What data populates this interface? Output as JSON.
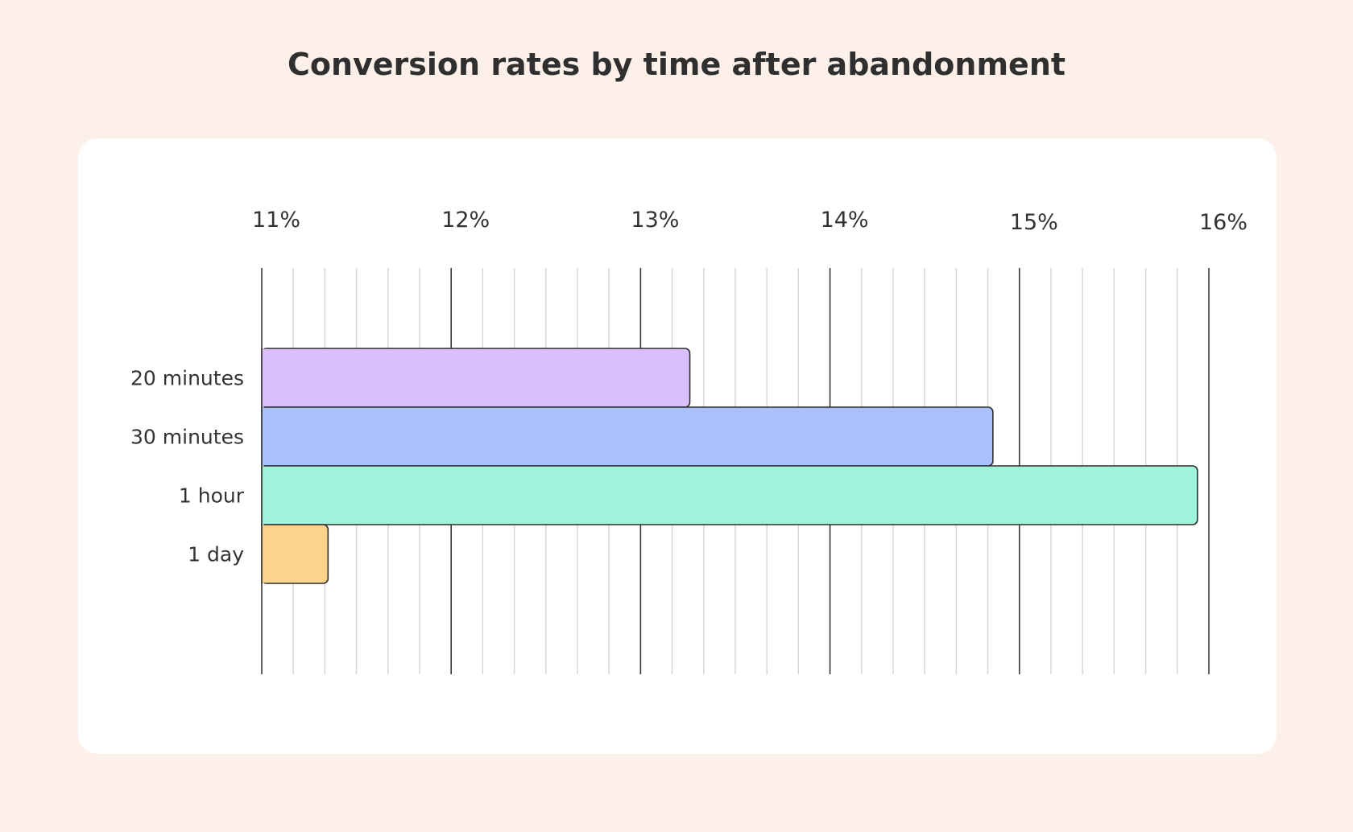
{
  "chart_data": {
    "type": "bar",
    "orientation": "horizontal",
    "title": "Conversion rates by time after abandonment",
    "xlabel": "",
    "ylabel": "",
    "xlim": [
      11,
      16
    ],
    "ticks": [
      "11%",
      "12%",
      "13%",
      "14%",
      "15%",
      "16%"
    ],
    "minor_per_major": 6,
    "grid": true,
    "categories": [
      "20 minutes",
      "30 minutes",
      "1 hour",
      "1 day"
    ],
    "values": [
      13.26,
      14.86,
      15.94,
      11.35
    ],
    "colors": [
      "#dbbffd",
      "#a9c1fd",
      "#9ef3da",
      "#fcd38c"
    ]
  }
}
